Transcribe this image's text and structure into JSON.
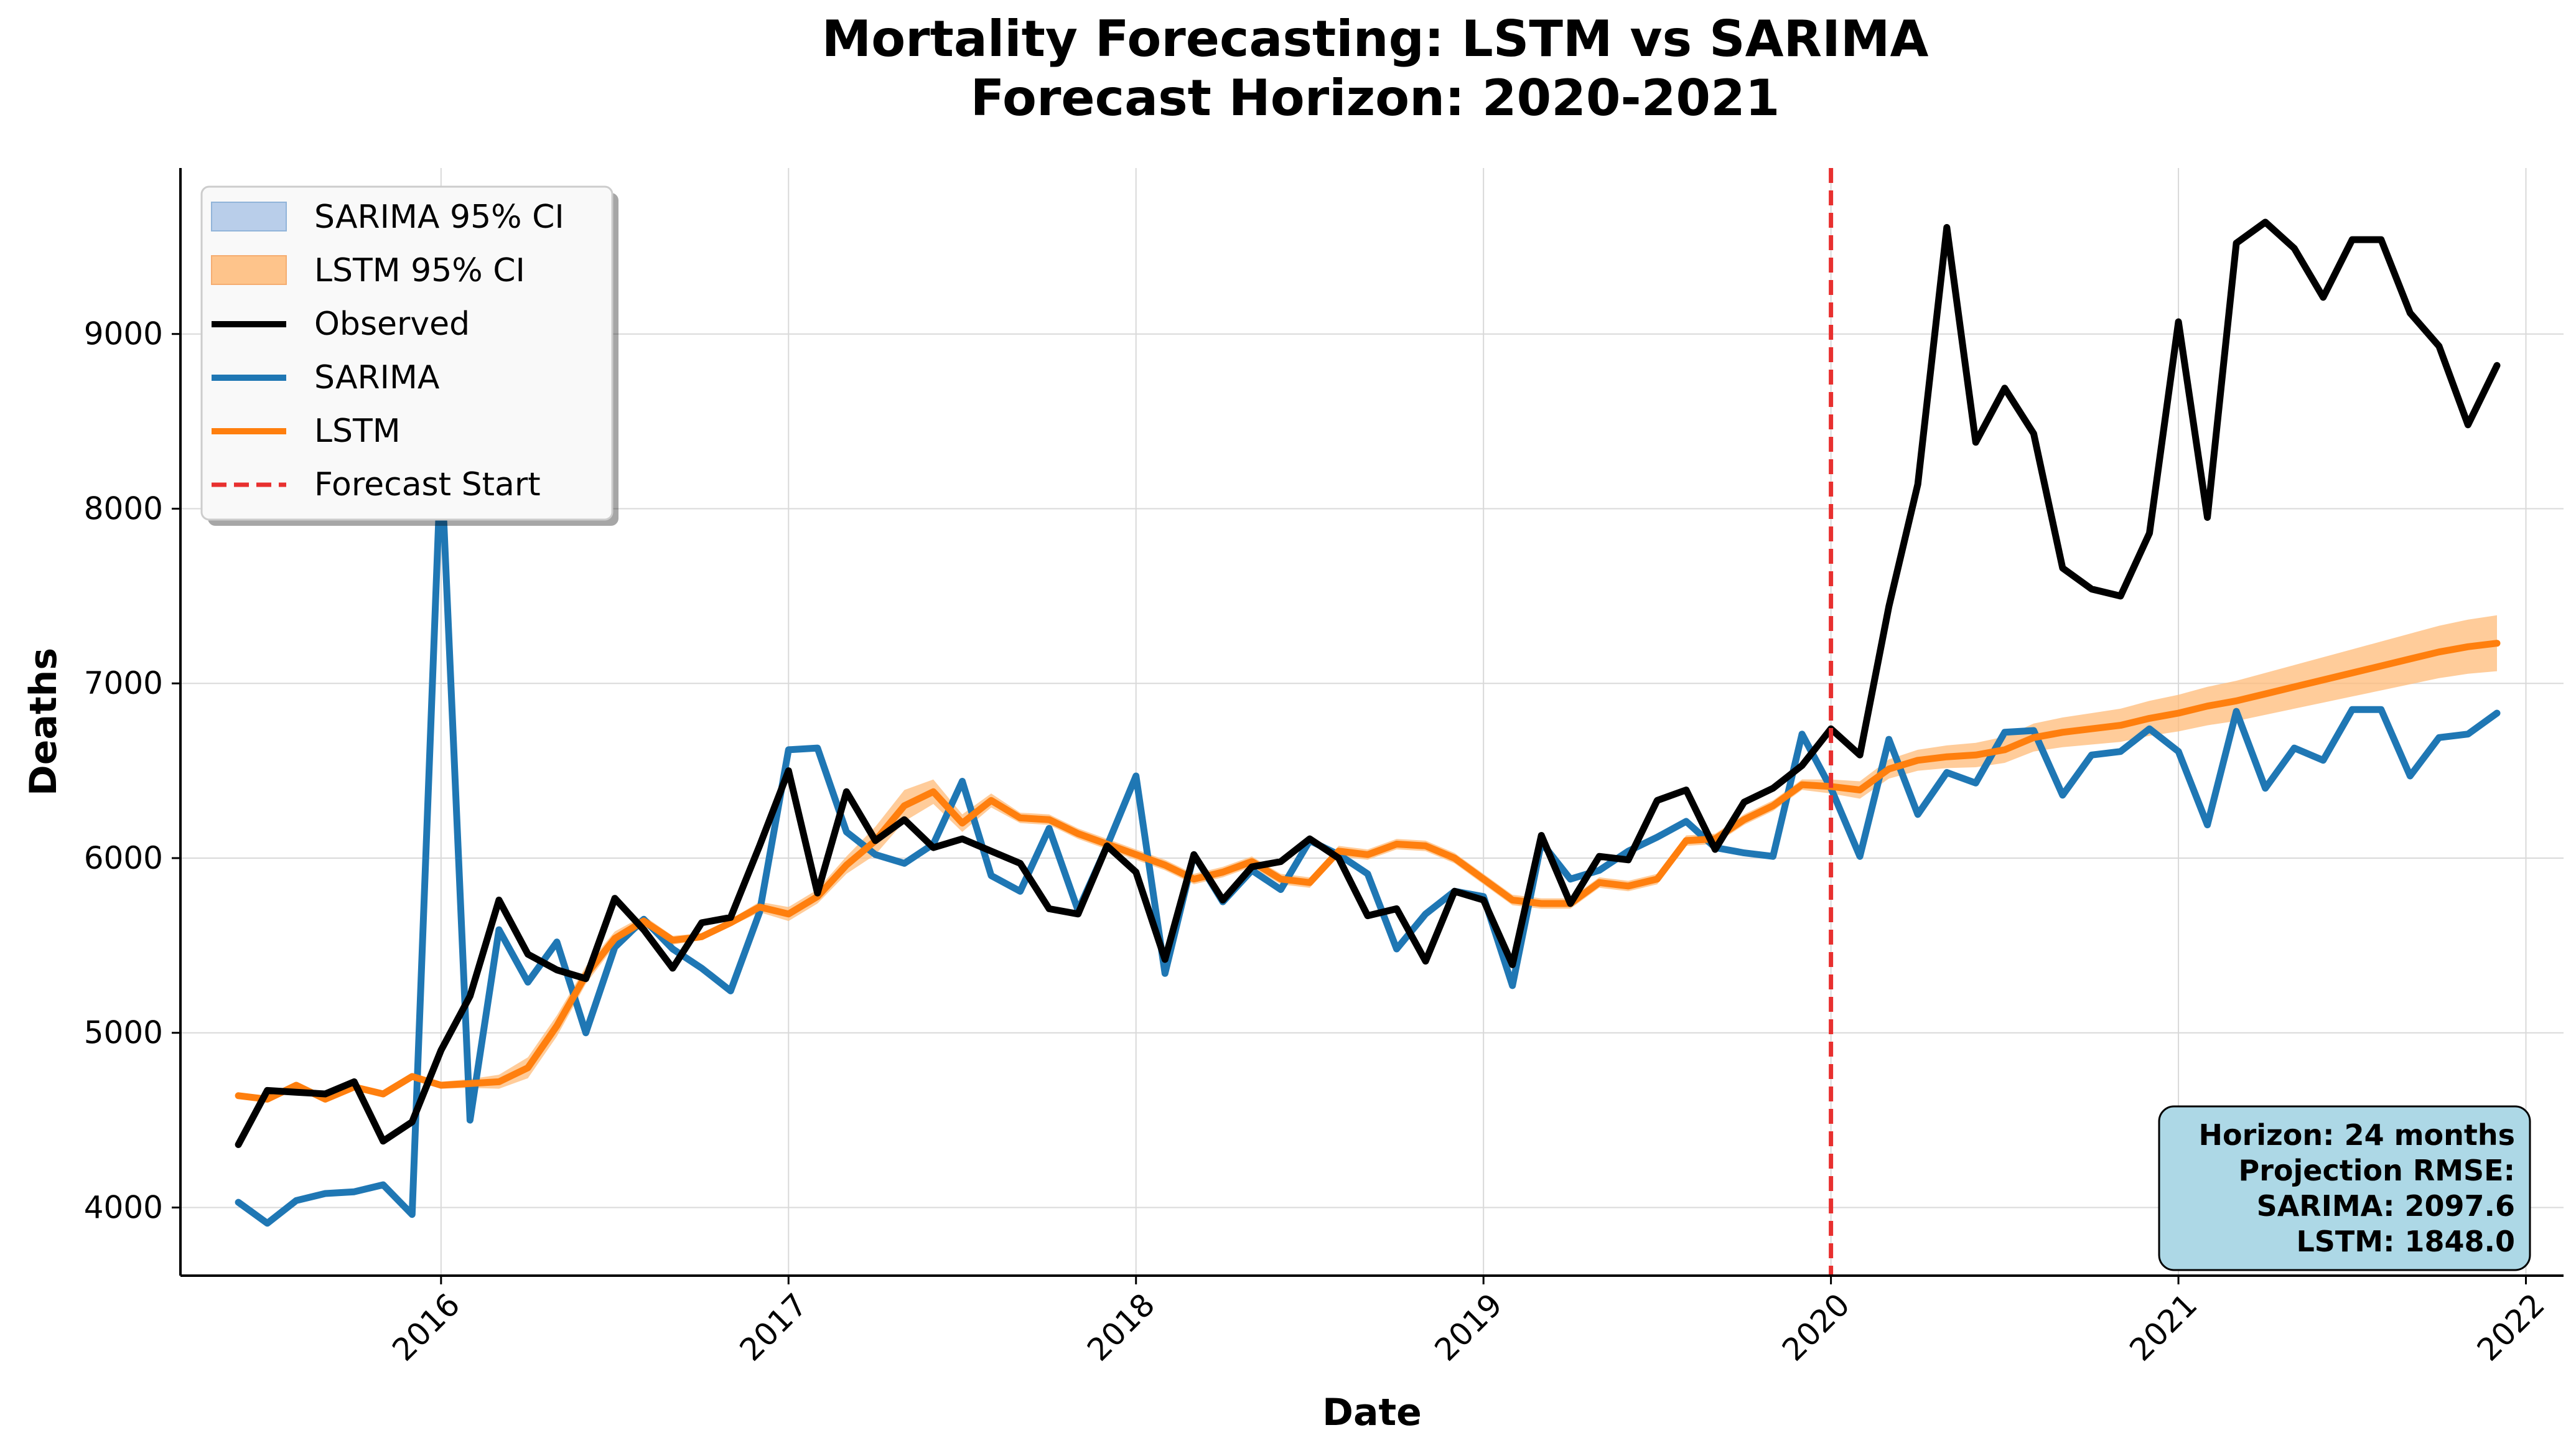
{
  "chart_data": {
    "type": "line",
    "title": "Mortality Forecasting: LSTM vs SARIMA",
    "subtitle": "Forecast Horizon: 2020-2021",
    "xlabel": "Date",
    "ylabel": "Deaths",
    "xlim": [
      "2015-04-01",
      "2022-02-10"
    ],
    "ylim": [
      3610,
      9950
    ],
    "x_ticks": [
      "2016",
      "2017",
      "2018",
      "2019",
      "2020",
      "2021",
      "2022"
    ],
    "y_ticks": [
      4000,
      5000,
      6000,
      7000,
      8000,
      9000
    ],
    "grid": true,
    "legend_position": "top-left",
    "forecast_start": "2020-01",
    "dates": [
      "2015-06",
      "2015-07",
      "2015-08",
      "2015-09",
      "2015-10",
      "2015-11",
      "2015-12",
      "2016-01",
      "2016-02",
      "2016-03",
      "2016-04",
      "2016-05",
      "2016-06",
      "2016-07",
      "2016-08",
      "2016-09",
      "2016-10",
      "2016-11",
      "2016-12",
      "2017-01",
      "2017-02",
      "2017-03",
      "2017-04",
      "2017-05",
      "2017-06",
      "2017-07",
      "2017-08",
      "2017-09",
      "2017-10",
      "2017-11",
      "2017-12",
      "2018-01",
      "2018-02",
      "2018-03",
      "2018-04",
      "2018-05",
      "2018-06",
      "2018-07",
      "2018-08",
      "2018-09",
      "2018-10",
      "2018-11",
      "2018-12",
      "2019-01",
      "2019-02",
      "2019-03",
      "2019-04",
      "2019-05",
      "2019-06",
      "2019-07",
      "2019-08",
      "2019-09",
      "2019-10",
      "2019-11",
      "2019-12",
      "2020-01",
      "2020-02",
      "2020-03",
      "2020-04",
      "2020-05",
      "2020-06",
      "2020-07",
      "2020-08",
      "2020-09",
      "2020-10",
      "2020-11",
      "2020-12",
      "2021-01",
      "2021-02",
      "2021-03",
      "2021-04",
      "2021-05",
      "2021-06",
      "2021-07",
      "2021-08",
      "2021-09",
      "2021-10",
      "2021-11",
      "2021-12"
    ],
    "series": [
      {
        "name": "Observed",
        "color": "#000000",
        "values": [
          4360,
          4670,
          4660,
          4650,
          4720,
          4380,
          4490,
          4900,
          5210,
          5760,
          5450,
          5360,
          5310,
          5770,
          5590,
          5370,
          5630,
          5660,
          6070,
          6500,
          5800,
          6380,
          6100,
          6220,
          6060,
          6110,
          6040,
          5970,
          5710,
          5680,
          6070,
          5920,
          5420,
          6020,
          5760,
          5950,
          5980,
          6110,
          6000,
          5670,
          5710,
          5410,
          5810,
          5760,
          5390,
          6130,
          5740,
          6010,
          5990,
          6330,
          6390,
          6050,
          6320,
          6400,
          6530,
          6740,
          6590,
          7440,
          8140,
          9610,
          8380,
          8690,
          8430,
          7660,
          7540,
          7500,
          7860,
          9070,
          7950,
          9520,
          9640,
          9490,
          9210,
          9540,
          9540,
          9120,
          8930,
          8480,
          8820
        ]
      },
      {
        "name": "SARIMA",
        "color": "#1f77b4",
        "values": [
          4030,
          3910,
          4040,
          4080,
          4090,
          4130,
          3960,
          8290,
          4500,
          5590,
          5290,
          5520,
          5000,
          5490,
          5650,
          5480,
          5370,
          5240,
          5690,
          6620,
          6630,
          6150,
          6020,
          5970,
          6080,
          6440,
          5900,
          5810,
          6170,
          5700,
          6070,
          6470,
          5340,
          6020,
          5750,
          5930,
          5820,
          6100,
          6020,
          5910,
          5480,
          5680,
          5810,
          5780,
          5270,
          6090,
          5880,
          5930,
          6040,
          6120,
          6210,
          6060,
          6030,
          6010,
          6710,
          6400,
          6010,
          6680,
          6250,
          6490,
          6430,
          6720,
          6730,
          6360,
          6590,
          6610,
          6740,
          6610,
          6190,
          6840,
          6400,
          6630,
          6560,
          6850,
          6850,
          6470,
          6690,
          6710,
          6830
        ]
      },
      {
        "name": "LSTM",
        "color": "#ff7f0e",
        "values": [
          4640,
          4620,
          4700,
          4620,
          4690,
          4650,
          4750,
          4700,
          4710,
          4720,
          4800,
          5040,
          5330,
          5540,
          5640,
          5530,
          5550,
          5630,
          5720,
          5680,
          5780,
          5960,
          6100,
          6300,
          6380,
          6200,
          6330,
          6230,
          6220,
          6140,
          6080,
          6020,
          5960,
          5880,
          5920,
          5980,
          5880,
          5860,
          6040,
          6020,
          6080,
          6070,
          6000,
          5880,
          5760,
          5740,
          5740,
          5860,
          5840,
          5880,
          6100,
          6110,
          6220,
          6300,
          6420,
          6410,
          6390,
          6510,
          6560,
          6580,
          6590,
          6620,
          6690,
          6720,
          6740,
          6760,
          6800,
          6830,
          6870,
          6900,
          6940,
          6980,
          7020,
          7060,
          7100,
          7140,
          7180,
          7210,
          7230
        ]
      }
    ],
    "lstm_ci": {
      "name": "LSTM 95% CI",
      "color": "#ffbb78",
      "half_width": [
        15,
        15,
        15,
        15,
        15,
        15,
        15,
        20,
        25,
        40,
        60,
        60,
        50,
        40,
        30,
        25,
        20,
        20,
        30,
        40,
        40,
        50,
        80,
        90,
        70,
        50,
        40,
        30,
        30,
        30,
        30,
        30,
        30,
        30,
        30,
        30,
        30,
        30,
        30,
        30,
        30,
        30,
        30,
        30,
        30,
        30,
        30,
        30,
        30,
        30,
        30,
        30,
        30,
        30,
        30,
        40,
        50,
        55,
        60,
        65,
        70,
        75,
        80,
        85,
        90,
        95,
        100,
        105,
        110,
        115,
        120,
        125,
        130,
        135,
        140,
        145,
        150,
        155,
        160
      ]
    },
    "sarima_ci": {
      "name": "SARIMA 95% CI",
      "color": "#aec7e8"
    },
    "legend": [
      "SARIMA 95% CI",
      "LSTM 95% CI",
      "Observed",
      "SARIMA",
      "LSTM",
      "Forecast Start"
    ],
    "stats_box": {
      "lines": [
        "Horizon: 24 months",
        "Projection RMSE:",
        "SARIMA: 2097.6",
        "LSTM: 1848.0"
      ],
      "background": "#add8e6"
    }
  }
}
